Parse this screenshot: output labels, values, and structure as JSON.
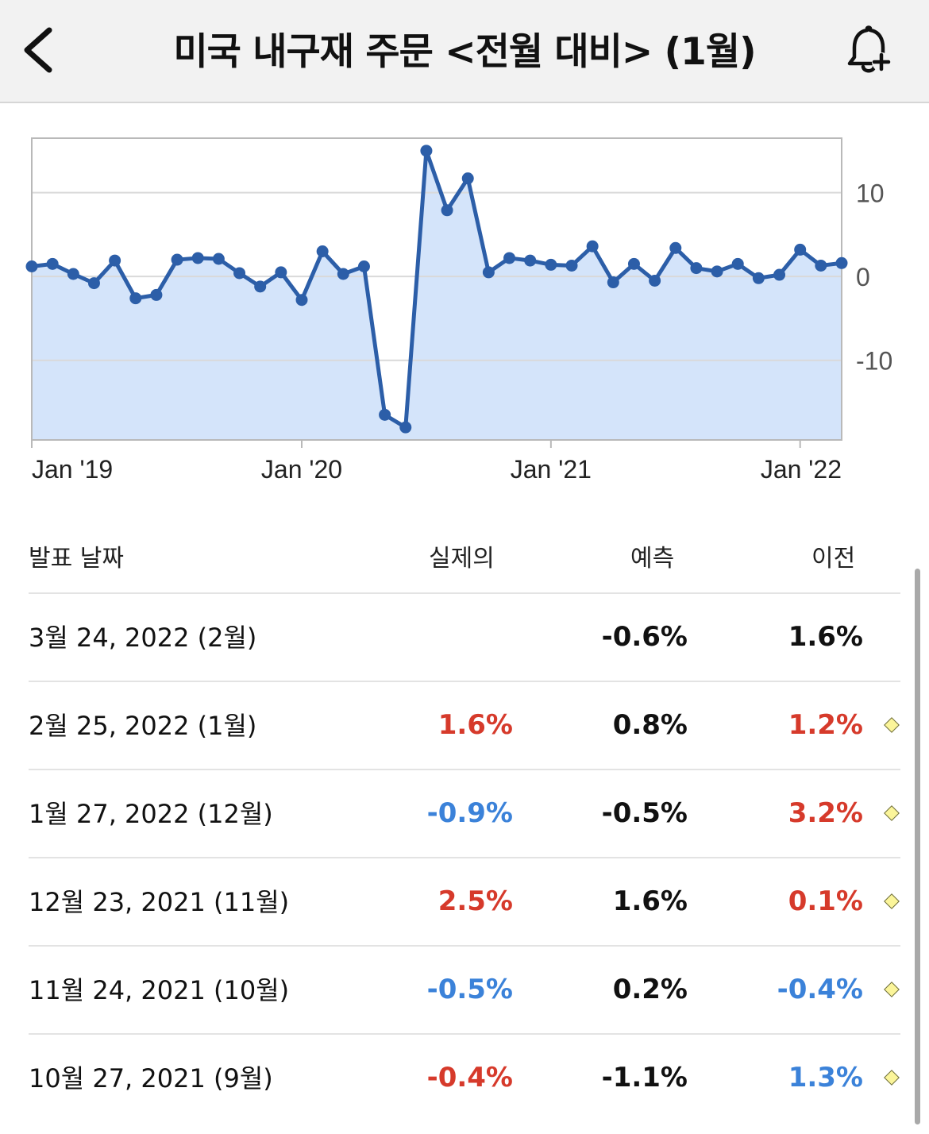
{
  "header": {
    "title": "미국 내구재 주문 <전월 대비> (1월)",
    "back_icon": "chevron-left-icon",
    "bell_icon": "bell-plus-icon"
  },
  "chart_data": {
    "type": "area",
    "x_tick_labels": [
      "Jan '19",
      "Jan '20",
      "Jan '21",
      "Jan '22"
    ],
    "y_tick_labels": [
      "10",
      "0",
      "-10"
    ],
    "y_ticks": [
      10,
      0,
      -10
    ],
    "ylim": [
      -19.5,
      16.5
    ],
    "grid": true,
    "line_color": "#2c5ea8",
    "fill_color": "#d4e4fa",
    "series": [
      {
        "values": [
          1.2,
          1.5,
          0.3,
          -0.8,
          1.9,
          -2.6,
          -2.2,
          2.0,
          2.2,
          2.1,
          0.4,
          -1.2,
          0.5,
          -2.8,
          3.0,
          0.3,
          1.2,
          -16.5,
          -18.0,
          15.0,
          7.9,
          11.7,
          0.5,
          2.2,
          1.9,
          1.4,
          1.3,
          3.6,
          -0.7,
          1.5,
          -0.5,
          3.4,
          1.0,
          0.6,
          1.5,
          -0.2,
          0.2,
          3.2,
          1.3,
          1.6
        ]
      }
    ],
    "x_tick_indices": [
      0,
      13,
      25,
      37
    ]
  },
  "table": {
    "headers": {
      "date": "발표 날짜",
      "actual": "실제의",
      "forecast": "예측",
      "previous": "이전"
    },
    "rows": [
      {
        "date": "3월 24, 2022 (2월)",
        "actual": "",
        "actual_tone": "neu",
        "forecast": "-0.6%",
        "previous": "1.6%",
        "previous_tone": "neu",
        "diamond": false
      },
      {
        "date": "2월 25, 2022 (1월)",
        "actual": "1.6%",
        "actual_tone": "pos",
        "forecast": "0.8%",
        "previous": "1.2%",
        "previous_tone": "pos",
        "diamond": true
      },
      {
        "date": "1월 27, 2022 (12월)",
        "actual": "-0.9%",
        "actual_tone": "neg",
        "forecast": "-0.5%",
        "previous": "3.2%",
        "previous_tone": "pos",
        "diamond": true
      },
      {
        "date": "12월 23, 2021 (11월)",
        "actual": "2.5%",
        "actual_tone": "pos",
        "forecast": "1.6%",
        "previous": "0.1%",
        "previous_tone": "pos",
        "diamond": true
      },
      {
        "date": "11월 24, 2021 (10월)",
        "actual": "-0.5%",
        "actual_tone": "neg",
        "forecast": "0.2%",
        "previous": "-0.4%",
        "previous_tone": "neg",
        "diamond": true
      },
      {
        "date": "10월 27, 2021 (9월)",
        "actual": "-0.4%",
        "actual_tone": "pos",
        "forecast": "-1.1%",
        "previous": "1.3%",
        "previous_tone": "neg",
        "diamond": true
      }
    ]
  }
}
